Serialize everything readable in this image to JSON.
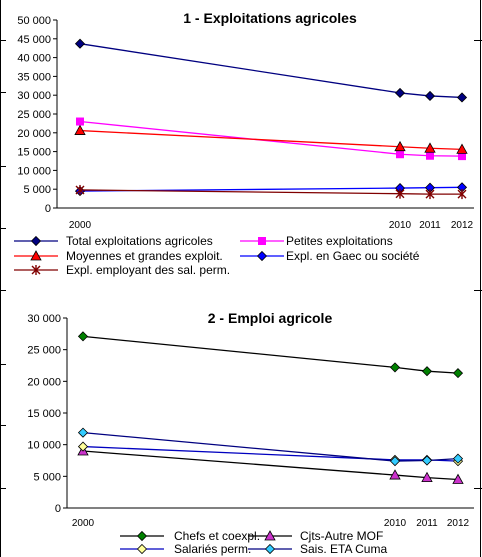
{
  "colors": {
    "total": "#000080",
    "petites": "#ff00ff",
    "moyennes": "#ff0000",
    "gaec": "#0000ff",
    "sal_perm_expl": "#800000",
    "chefs_line": "#000000",
    "chefs_marker": "#008000",
    "cjts_marker": "#cc33cc",
    "salaries_marker": "#ffff99",
    "salaries_line": "#0000c0",
    "sais_marker": "#33ccff",
    "sais_line": "#000080"
  },
  "chart_data": [
    {
      "type": "line",
      "title": "1 - Exploitations agricoles",
      "xlabel": "",
      "ylabel": "",
      "x": [
        "2000",
        "2010",
        "2011",
        "2012"
      ],
      "ylim": [
        0,
        50000
      ],
      "yticks": [
        "0",
        "5 000",
        "10 000",
        "15 000",
        "20 000",
        "25 000",
        "30 000",
        "35 000",
        "40 000",
        "45 000",
        "50 000"
      ],
      "legend_position": "bottom",
      "series": [
        {
          "name": "Total exploitations agricoles",
          "values": [
            43700,
            30600,
            29800,
            29400
          ],
          "marker": "diamond",
          "color_key": "total"
        },
        {
          "name": "Petites exploitations",
          "values": [
            23000,
            14300,
            13900,
            13800
          ],
          "marker": "square",
          "color_key": "petites"
        },
        {
          "name": "Moyennes et grandes exploit.",
          "values": [
            20600,
            16300,
            15900,
            15600
          ],
          "marker": "triangle",
          "color_key": "moyennes"
        },
        {
          "name": "Expl. en Gaec ou société",
          "values": [
            4500,
            5300,
            5400,
            5500
          ],
          "marker": "diamond",
          "color_key": "gaec"
        },
        {
          "name": "Expl. employant des sal. perm.",
          "values": [
            4800,
            3800,
            3700,
            3700
          ],
          "marker": "star",
          "color_key": "sal_perm_expl"
        }
      ]
    },
    {
      "type": "line",
      "title": "2 - Emploi agricole",
      "xlabel": "",
      "ylabel": "",
      "x": [
        "2000",
        "2010",
        "2011",
        "2012"
      ],
      "ylim": [
        0,
        30000
      ],
      "yticks": [
        "0",
        "5 000",
        "10 000",
        "15 000",
        "20 000",
        "25 000",
        "30 000"
      ],
      "legend_position": "bottom",
      "series": [
        {
          "name": "Chefs et coexpl.",
          "values": [
            27100,
            22200,
            21600,
            21300
          ],
          "marker": "diamond",
          "color_key": "chefs_marker",
          "line_key": "chefs_line"
        },
        {
          "name": "Cjts-Autre MOF",
          "values": [
            9000,
            5200,
            4800,
            4500
          ],
          "marker": "triangle",
          "color_key": "cjts_marker",
          "line_key": "chefs_line"
        },
        {
          "name": "Salariés perm.",
          "values": [
            9700,
            7600,
            7600,
            7400
          ],
          "marker": "diamond",
          "color_key": "salaries_marker",
          "line_key": "salaries_line"
        },
        {
          "name": "Sais. ETA Cuma",
          "values": [
            11900,
            7400,
            7500,
            7800
          ],
          "marker": "diamond",
          "color_key": "sais_marker",
          "line_key": "sais_line"
        }
      ]
    }
  ]
}
